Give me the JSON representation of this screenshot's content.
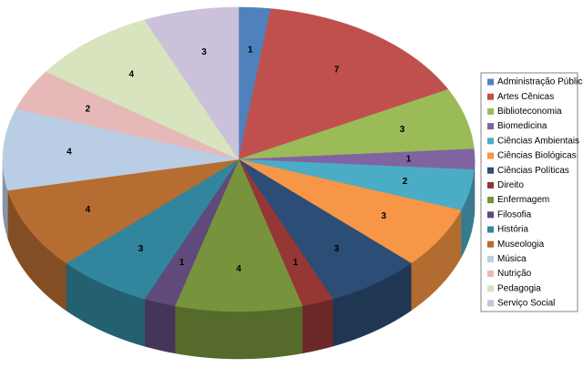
{
  "chart_data": {
    "type": "pie",
    "categories": [
      "Administração Pública",
      "Artes Cênicas",
      "Biblioteconomia",
      "Biomedicina",
      "Ciências Ambientais",
      "Ciências Biológicas",
      "Ciências Políticas",
      "Direito",
      "Enfermagem",
      "Filosofia",
      "História",
      "Museologia",
      "Música",
      "Nutrição",
      "Pedagogia",
      "Serviço Social"
    ],
    "values": [
      1,
      7,
      3,
      1,
      2,
      3,
      3,
      1,
      4,
      1,
      3,
      4,
      4,
      2,
      4,
      3
    ],
    "colors": [
      "#4f81bd",
      "#c0504d",
      "#9bbb59",
      "#8064a2",
      "#4bacc6",
      "#f79646",
      "#2c4d75",
      "#953735",
      "#77933c",
      "#604a7b",
      "#31859c",
      "#b66d31",
      "#b9cde5",
      "#e6b9b8",
      "#d7e4bd",
      "#ccc1da"
    ],
    "legend": "right"
  }
}
